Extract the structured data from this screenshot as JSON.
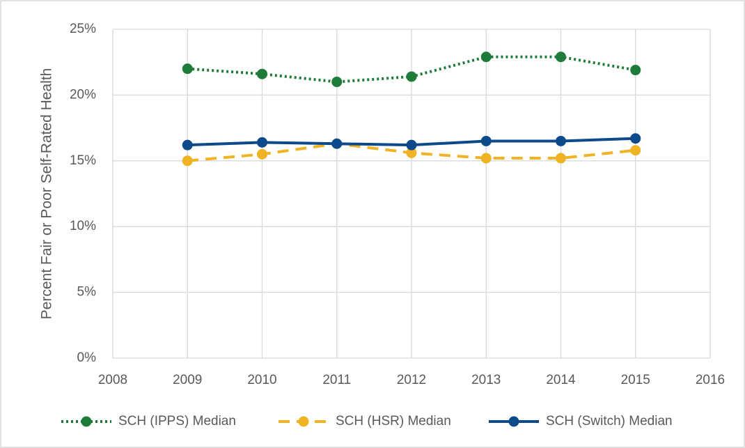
{
  "chart_data": {
    "type": "line",
    "y_label": "Percent Fair or Poor Self-Rated Health",
    "x": [
      2009,
      2010,
      2011,
      2012,
      2013,
      2014,
      2015
    ],
    "xlim": [
      2008,
      2016
    ],
    "xticks": [
      2008,
      2009,
      2010,
      2011,
      2012,
      2013,
      2014,
      2015,
      2016
    ],
    "ylim": [
      0,
      25
    ],
    "yticks": [
      {
        "value": 0,
        "label": "0%"
      },
      {
        "value": 5,
        "label": "5%"
      },
      {
        "value": 10,
        "label": "10%"
      },
      {
        "value": 15,
        "label": "15%"
      },
      {
        "value": 20,
        "label": "20%"
      },
      {
        "value": 25,
        "label": "25%"
      }
    ],
    "grid": true,
    "legend": "bottom",
    "series": [
      {
        "name": "SCH (IPPS) Median",
        "color": "#1e7b3a",
        "dash": "dotted",
        "values": [
          22.0,
          21.6,
          21.0,
          21.4,
          22.9,
          22.9,
          21.9
        ]
      },
      {
        "name": "SCH (HSR) Median",
        "color": "#f0b323",
        "dash": "dashed",
        "values": [
          15.0,
          15.5,
          16.3,
          15.6,
          15.2,
          15.2,
          15.8
        ]
      },
      {
        "name": "SCH (Switch) Median",
        "color": "#0c4a8c",
        "dash": "solid",
        "values": [
          16.2,
          16.4,
          16.3,
          16.2,
          16.5,
          16.5,
          16.7
        ]
      }
    ]
  }
}
